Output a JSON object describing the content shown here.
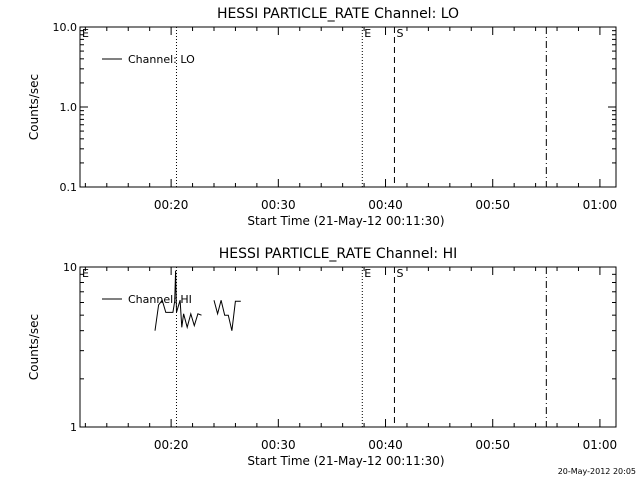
{
  "footer": {
    "timestamp": "20-May-2012 20:05"
  },
  "chart_data": [
    {
      "type": "line",
      "title": "HESSI PARTICLE_RATE Channel: LO",
      "xlabel": "Start Time (21-May-12 00:11:30)",
      "ylabel": "Counts/sec",
      "yscale": "log",
      "xlim": [
        "00:11:30",
        "01:01:30"
      ],
      "ylim": [
        0.1,
        10.0
      ],
      "xticks": [
        "00:20",
        "00:30",
        "00:40",
        "00:50",
        "01:00"
      ],
      "yticks": [
        "0.1",
        "1.0",
        "10.0"
      ],
      "legend": {
        "position": "top-left",
        "entries": [
          "Channel: LO"
        ]
      },
      "series": [
        {
          "name": "Channel: LO",
          "points": []
        }
      ],
      "markers": [
        {
          "label": "E",
          "time": "00:11:30",
          "style": "solid"
        },
        {
          "label": "",
          "time": "00:20:30",
          "style": "dotted"
        },
        {
          "label": "E",
          "time": "00:37:50",
          "style": "dotted"
        },
        {
          "label": "S",
          "time": "00:40:50",
          "style": "dashed"
        },
        {
          "label": "",
          "time": "00:55:00",
          "style": "dashdot"
        }
      ]
    },
    {
      "type": "line",
      "title": "HESSI PARTICLE_RATE Channel: HI",
      "xlabel": "Start Time (21-May-12 00:11:30)",
      "ylabel": "Counts/sec",
      "yscale": "log",
      "xlim": [
        "00:11:30",
        "01:01:30"
      ],
      "ylim": [
        1,
        10
      ],
      "xticks": [
        "00:20",
        "00:30",
        "00:40",
        "00:50",
        "01:00"
      ],
      "yticks": [
        "1",
        "10"
      ],
      "legend": {
        "position": "top-left",
        "entries": [
          "Channel: HI"
        ]
      },
      "series": [
        {
          "name": "Channel: HI",
          "segments": [
            [
              [
                "00:18:30",
                4.0
              ],
              [
                "00:18:50",
                5.8
              ],
              [
                "00:19:10",
                6.2
              ],
              [
                "00:19:30",
                5.2
              ],
              [
                "00:19:50",
                5.2
              ],
              [
                "00:20:10",
                5.2
              ],
              [
                "00:20:20",
                6.1
              ],
              [
                "00:20:25",
                9.5
              ],
              [
                "00:20:30",
                5.2
              ],
              [
                "00:20:50",
                6.2
              ],
              [
                "00:21:00",
                4.2
              ],
              [
                "00:21:10",
                5.1
              ],
              [
                "00:21:30",
                4.2
              ],
              [
                "00:21:50",
                5.1
              ],
              [
                "00:22:10",
                4.3
              ],
              [
                "00:22:30",
                5.1
              ],
              [
                "00:22:50",
                5.0
              ]
            ],
            [
              [
                "00:24:00",
                6.2
              ],
              [
                "00:24:20",
                5.1
              ],
              [
                "00:24:40",
                6.2
              ],
              [
                "00:25:00",
                5.0
              ],
              [
                "00:25:20",
                5.0
              ],
              [
                "00:25:40",
                4.0
              ],
              [
                "00:26:00",
                6.1
              ],
              [
                "00:26:30",
                6.1
              ]
            ]
          ]
        }
      ],
      "markers": [
        {
          "label": "E",
          "time": "00:11:30",
          "style": "solid"
        },
        {
          "label": "",
          "time": "00:20:30",
          "style": "dotted"
        },
        {
          "label": "E",
          "time": "00:37:50",
          "style": "dotted"
        },
        {
          "label": "S",
          "time": "00:40:50",
          "style": "dashed"
        },
        {
          "label": "",
          "time": "00:55:00",
          "style": "dashdot"
        }
      ]
    }
  ]
}
